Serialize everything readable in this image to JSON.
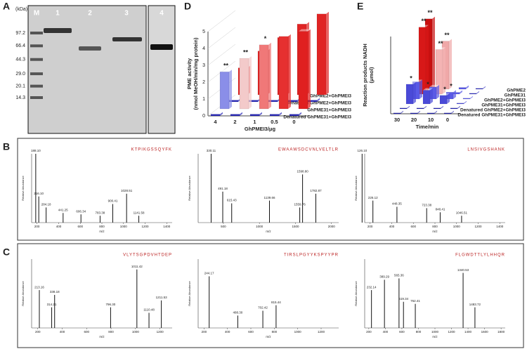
{
  "panels": {
    "A": {
      "letter": "A",
      "unit": "(kDa)",
      "lanes": [
        "M",
        "1",
        "2",
        "3",
        "4"
      ],
      "markers": [
        97.2,
        66.4,
        44.3,
        {
          "value": 29.0,
          "label": "29.0"
        },
        20.1,
        14.3
      ]
    },
    "D": {
      "letter": "D",
      "type": "bar3d",
      "ylabel": [
        "PME activity",
        "(nmol MeOH/min/mg protein)"
      ],
      "xlabel": "GhPMEI3/μg",
      "categories": [
        "4",
        "2",
        "1",
        "0.5",
        "0"
      ],
      "ylim": [
        0,
        5
      ],
      "yticks": [
        0,
        1,
        2,
        3,
        4,
        5
      ],
      "series": [
        {
          "name": "GhPME2+GhPMEI3",
          "color": "#e02424",
          "values": [
            1.6,
            2.6,
            3.4,
            4.2,
            4.8
          ]
        },
        {
          "name": "Denatured GhPME2+GhPMEI3",
          "color": "#2a2ab8",
          "values": [
            0.1,
            0.1,
            0.1,
            0.1,
            0.1
          ]
        },
        {
          "name": "GhPME31+GhPMEI3",
          "colors": [
            "#8a8ee8",
            "#f3caca",
            "#f07878",
            "#e63030",
            "#e02020"
          ],
          "values": [
            2.2,
            3.0,
            3.8,
            4.3,
            4.6
          ],
          "marks": [
            "**",
            "**",
            "*",
            null,
            null
          ]
        },
        {
          "name": "Denatured GhPME31+GhPMEI3",
          "color": "#2a2ab8",
          "values": [
            0.1,
            0.1,
            0.1,
            0.1,
            0.1
          ]
        }
      ]
    },
    "E": {
      "letter": "E",
      "type": "bar3d",
      "ylabel": [
        "Reaction products NADH",
        "(μmol)"
      ],
      "xlabel": "Time/min",
      "categories": [
        "30",
        "20",
        "10",
        "0"
      ],
      "ylim": [
        0,
        9
      ],
      "series": [
        {
          "name": "GhPME2",
          "colors": [
            "#c81010",
            "#f0a8a8",
            "#5a5ae6",
            "#3030c0"
          ],
          "values": [
            8.2,
            5.6,
            0.2,
            0.1
          ],
          "marks": [
            "**",
            "**",
            null,
            null
          ]
        },
        {
          "name": "GhPME31",
          "colors": [
            "#d81818",
            "#f4b4b4",
            "#5a5ae6",
            "#3030c0"
          ],
          "values": [
            7.8,
            5.2,
            0.2,
            0.1
          ],
          "marks": [
            "**",
            "**",
            null,
            null
          ]
        },
        {
          "name": "GhPME2+GhPMEI3",
          "color": "#5a5ae6",
          "values": [
            2.0,
            1.4,
            0.8,
            0.1
          ],
          "marks": [
            null,
            null,
            "*",
            null
          ]
        },
        {
          "name": "GhPME31+GhPMEI3",
          "color": "#4a4ad8",
          "values": [
            2.3,
            1.6,
            1.0,
            0.1
          ],
          "marks": [
            "*",
            "*",
            "*",
            null
          ]
        },
        {
          "name": "Denatured GhPME2+GhPMEI3",
          "color": "#2020b0",
          "values": [
            0.1,
            0.1,
            0.1,
            0.1
          ]
        },
        {
          "name": "Denatured GhPME31+GhPMEI3",
          "color": "#2020b0",
          "values": [
            0.1,
            0.1,
            0.1,
            0.1
          ]
        }
      ]
    },
    "B": {
      "letter": "B",
      "xlabel": "m/z",
      "ylabel": "Relative Abundance",
      "spectra": [
        {
          "sequence": "KTPIKGSSQYFK",
          "xlim": [
            150,
            1450
          ],
          "xticks": [
            200,
            400,
            600,
            800,
            1000,
            1200,
            1400
          ],
          "x": [
            188.1,
            216.1,
            284.18,
            441.25,
            606.34,
            783.38,
            900.41,
            1028.51,
            1141.58
          ],
          "x_labels": [
            "188.10",
            "216.10",
            "284.18",
            "441.25",
            "606.34",
            "783.38",
            "900.41",
            "1028.51",
            "1141.58"
          ],
          "values": [
            100,
            38,
            22,
            14,
            12,
            10,
            27,
            42,
            10
          ]
        },
        {
          "sequence": "EWAAWSDCVNLVELTLR",
          "xlim": [
            150,
            2100
          ],
          "xticks": [
            500,
            1000,
            1500,
            2000
          ],
          "x": [
            330.11,
            491.18,
            615.43,
            1139.66,
            1559.76,
            1598.8,
            1782.87
          ],
          "x_labels": [
            "330.11",
            "491.18",
            "615.43",
            "1139.66",
            "1559.76",
            "1598.80",
            "1782.87"
          ],
          "values": [
            100,
            45,
            28,
            32,
            22,
            70,
            42
          ]
        },
        {
          "sequence": "LNSIVGSHANK",
          "xlim": [
            150,
            1450
          ],
          "xticks": [
            200,
            400,
            600,
            800,
            1000,
            1200,
            1400
          ],
          "x": [
            126.1,
            226.12,
            448.35,
            723.38,
            848.41,
            1046.51
          ],
          "x_labels": [
            "126.10",
            "226.12",
            "448.35",
            "723.38",
            "848.41",
            "1046.51"
          ],
          "values": [
            100,
            32,
            23,
            21,
            15,
            10
          ]
        }
      ]
    },
    "C": {
      "letter": "C",
      "xlabel": "m/z",
      "ylabel": "Relative Abundance",
      "spectra": [
        {
          "sequence": "VLYTSGPDVHTDEP",
          "xlim": [
            150,
            1300
          ],
          "xticks": [
            200,
            400,
            600,
            800,
            1000,
            1200
          ],
          "x": [
            213.16,
            314.21,
            338.18,
            796.3,
            1011.42,
            1110.48,
            1211.53
          ],
          "x_labels": [
            "213.16",
            "314.21",
            "338.18",
            "796.30",
            "1011.42",
            "1110.48",
            "1211.53"
          ],
          "values": [
            55,
            30,
            48,
            30,
            85,
            22,
            40
          ]
        },
        {
          "sequence": "TIRSLPGYYKSPYYPR",
          "xlim": [
            150,
            1350
          ],
          "xticks": [
            200,
            400,
            600,
            800,
            1000,
            1200
          ],
          "x": [
            244.17,
            488.3,
            702.42,
            815.44
          ],
          "x_labels": [
            "244.17",
            "488.30",
            "702.42",
            "815.44"
          ],
          "values": [
            75,
            18,
            25,
            33
          ]
        },
        {
          "sequence": "FLGWDTTLYLHHQR",
          "xlim": [
            150,
            1850
          ],
          "xticks": [
            200,
            400,
            600,
            800,
            1000,
            1200,
            1400,
            1600,
            1800
          ],
          "x": [
            232.14,
            389.29,
            565.36,
            619.34,
            762.41,
            1340.53,
            1483.72
          ],
          "x_labels": [
            "232.14",
            "389.29",
            "565.36",
            "619.34",
            "762.41",
            "1340.53",
            "1483.72"
          ],
          "values": [
            55,
            70,
            72,
            38,
            35,
            80,
            30
          ]
        }
      ]
    }
  }
}
